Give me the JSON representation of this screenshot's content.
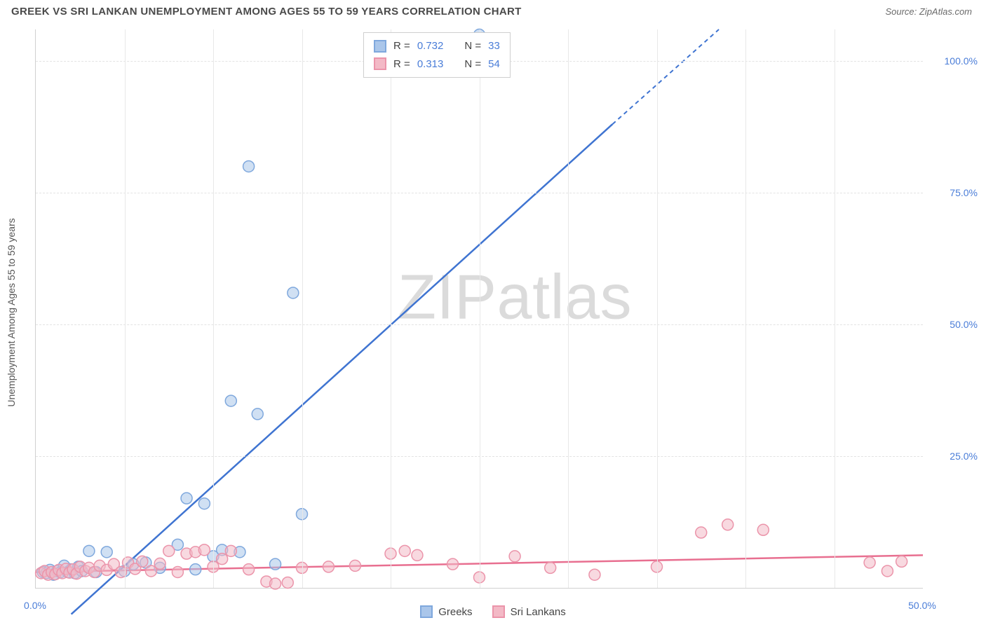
{
  "title": "GREEK VS SRI LANKAN UNEMPLOYMENT AMONG AGES 55 TO 59 YEARS CORRELATION CHART",
  "source": "Source: ZipAtlas.com",
  "ylabel": "Unemployment Among Ages 55 to 59 years",
  "watermark_a": "ZIP",
  "watermark_b": "atlas",
  "chart": {
    "type": "scatter",
    "xlim": [
      0,
      50
    ],
    "ylim": [
      0,
      106
    ],
    "xticks": [
      0,
      50
    ],
    "xtick_labels": [
      "0.0%",
      "50.0%"
    ],
    "yticks": [
      25,
      50,
      75,
      100
    ],
    "ytick_labels": [
      "25.0%",
      "50.0%",
      "75.0%",
      "100.0%"
    ],
    "vgrid_at": [
      5,
      10,
      15,
      20,
      25,
      30,
      35,
      40,
      45
    ],
    "background": "#ffffff",
    "grid_color": "#e3e3e3",
    "axis_color": "#d0d0d0",
    "tick_font_color": "#4a7dd8",
    "label_font_color": "#555555",
    "marker_radius": 8,
    "marker_stroke_width": 1.5,
    "line_width": 2.5,
    "series": [
      {
        "name": "Greeks",
        "fill": "#aac6ea",
        "stroke": "#7fa8dd",
        "line_color": "#3f74d1",
        "fill_opacity": 0.55,
        "R": "0.732",
        "N": "33",
        "trend": {
          "x1": 2.0,
          "y1": -5.0,
          "x2": 32.5,
          "y2": 88.0
        },
        "trend_extend": {
          "x1": 32.5,
          "y1": 88.0,
          "x2": 38.5,
          "y2": 106.0
        },
        "points": [
          [
            0.4,
            3.0
          ],
          [
            0.6,
            2.8
          ],
          [
            0.8,
            3.4
          ],
          [
            1.0,
            2.5
          ],
          [
            1.2,
            3.2
          ],
          [
            1.4,
            3.0
          ],
          [
            1.6,
            4.2
          ],
          [
            1.8,
            3.0
          ],
          [
            2.0,
            3.5
          ],
          [
            2.2,
            2.8
          ],
          [
            2.4,
            4.0
          ],
          [
            2.6,
            3.2
          ],
          [
            3.0,
            7.0
          ],
          [
            3.4,
            3.0
          ],
          [
            4.0,
            6.8
          ],
          [
            5.0,
            3.2
          ],
          [
            5.5,
            4.5
          ],
          [
            6.2,
            4.8
          ],
          [
            7.0,
            3.8
          ],
          [
            8.0,
            8.2
          ],
          [
            8.5,
            17.0
          ],
          [
            9.0,
            3.5
          ],
          [
            9.5,
            16.0
          ],
          [
            10.0,
            6.0
          ],
          [
            10.5,
            7.2
          ],
          [
            11.0,
            35.5
          ],
          [
            11.5,
            6.8
          ],
          [
            12.0,
            80.0
          ],
          [
            12.5,
            33.0
          ],
          [
            13.5,
            4.5
          ],
          [
            14.5,
            56.0
          ],
          [
            15.0,
            14.0
          ],
          [
            25.0,
            105.0
          ]
        ]
      },
      {
        "name": "Sri Lankans",
        "fill": "#f3b9c6",
        "stroke": "#eb94aa",
        "line_color": "#e86f90",
        "fill_opacity": 0.55,
        "R": "0.313",
        "N": "54",
        "trend": {
          "x1": 0.0,
          "y1": 3.0,
          "x2": 50.0,
          "y2": 6.2
        },
        "points": [
          [
            0.3,
            2.8
          ],
          [
            0.5,
            3.2
          ],
          [
            0.7,
            2.5
          ],
          [
            0.9,
            3.0
          ],
          [
            1.1,
            2.6
          ],
          [
            1.3,
            3.4
          ],
          [
            1.5,
            2.8
          ],
          [
            1.7,
            3.6
          ],
          [
            1.9,
            2.9
          ],
          [
            2.1,
            3.5
          ],
          [
            2.3,
            2.7
          ],
          [
            2.5,
            4.0
          ],
          [
            2.8,
            3.2
          ],
          [
            3.0,
            3.8
          ],
          [
            3.3,
            3.0
          ],
          [
            3.6,
            4.2
          ],
          [
            4.0,
            3.4
          ],
          [
            4.4,
            4.5
          ],
          [
            4.8,
            3.0
          ],
          [
            5.2,
            4.8
          ],
          [
            5.6,
            3.6
          ],
          [
            6.0,
            5.0
          ],
          [
            6.5,
            3.2
          ],
          [
            7.0,
            4.6
          ],
          [
            7.5,
            7.0
          ],
          [
            8.0,
            3.0
          ],
          [
            8.5,
            6.5
          ],
          [
            9.0,
            6.8
          ],
          [
            9.5,
            7.2
          ],
          [
            10.0,
            4.0
          ],
          [
            10.5,
            5.5
          ],
          [
            11.0,
            7.0
          ],
          [
            12.0,
            3.5
          ],
          [
            13.0,
            1.2
          ],
          [
            13.5,
            0.8
          ],
          [
            14.2,
            1.0
          ],
          [
            15.0,
            3.8
          ],
          [
            16.5,
            4.0
          ],
          [
            18.0,
            4.2
          ],
          [
            20.0,
            6.5
          ],
          [
            20.8,
            7.0
          ],
          [
            21.5,
            6.2
          ],
          [
            23.5,
            4.5
          ],
          [
            25.0,
            2.0
          ],
          [
            27.0,
            6.0
          ],
          [
            29.0,
            3.8
          ],
          [
            31.5,
            2.5
          ],
          [
            35.0,
            4.0
          ],
          [
            37.5,
            10.5
          ],
          [
            39.0,
            12.0
          ],
          [
            41.0,
            11.0
          ],
          [
            47.0,
            4.8
          ],
          [
            48.0,
            3.2
          ],
          [
            48.8,
            5.0
          ]
        ]
      }
    ]
  },
  "legend_top": {
    "R_label": "R =",
    "N_label": "N ="
  },
  "legend_bottom": [
    {
      "label": "Greeks",
      "fill": "#aac6ea",
      "stroke": "#7fa8dd"
    },
    {
      "label": "Sri Lankans",
      "fill": "#f3b9c6",
      "stroke": "#eb94aa"
    }
  ]
}
